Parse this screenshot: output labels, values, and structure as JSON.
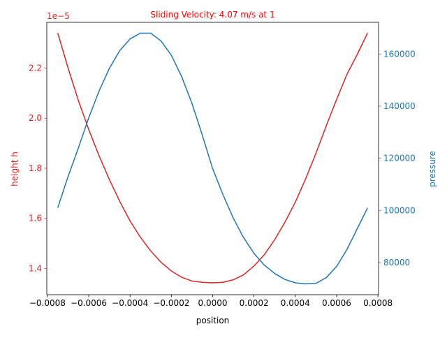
{
  "chart_data": {
    "type": "line",
    "title": "Sliding Velocity: 4.07 m/s at 1",
    "xlabel": "position",
    "xlim": [
      -0.000803,
      0.000803
    ],
    "x_ticks": [
      -0.0008,
      -0.0006,
      -0.0004,
      -0.0002,
      0.0,
      0.0002,
      0.0004,
      0.0006,
      0.0008
    ],
    "x_tick_labels": [
      "−0.0008",
      "−0.0006",
      "−0.0004",
      "−0.0002",
      "0.0000",
      "0.0002",
      "0.0004",
      "0.0006",
      "0.0008"
    ],
    "left_axis": {
      "label": "height h",
      "color": "#d62728",
      "offset_text": "1e−5",
      "ylim": [
        1.2955e-05,
        2.3825e-05
      ],
      "ticks": [
        1.4e-05,
        1.6e-05,
        1.8e-05,
        2e-05,
        2.2e-05
      ],
      "tick_labels": [
        "1.4",
        "1.6",
        "1.8",
        "2.0",
        "2.2"
      ]
    },
    "right_axis": {
      "label": "pressure",
      "color": "#1f77b4",
      "ylim": [
        67650,
        172150
      ],
      "ticks": [
        80000,
        100000,
        120000,
        140000,
        160000
      ],
      "tick_labels": [
        "80000",
        "100000",
        "120000",
        "140000",
        "160000"
      ]
    },
    "series": [
      {
        "axis": "left",
        "color": "#d62728",
        "x": [
          -0.00075,
          -0.0007,
          -0.00065,
          -0.0006,
          -0.00055,
          -0.0005,
          -0.00045,
          -0.0004,
          -0.00035,
          -0.0003,
          -0.00025,
          -0.0002,
          -0.00015,
          -0.0001,
          -5e-05,
          0.0,
          5e-05,
          0.0001,
          0.00015,
          0.0002,
          0.00025,
          0.0003,
          0.00035,
          0.0004,
          0.00045,
          0.0005,
          0.00055,
          0.0006,
          0.00065,
          0.0007,
          0.00075
        ],
        "values": [
          2.34e-05,
          2.2e-05,
          2.07e-05,
          1.955e-05,
          1.85e-05,
          1.755e-05,
          1.668e-05,
          1.59e-05,
          1.525e-05,
          1.47e-05,
          1.425e-05,
          1.39e-05,
          1.365e-05,
          1.35e-05,
          1.345e-05,
          1.343e-05,
          1.345e-05,
          1.355e-05,
          1.375e-05,
          1.41e-05,
          1.455e-05,
          1.515e-05,
          1.585e-05,
          1.665e-05,
          1.758e-05,
          1.86e-05,
          1.97e-05,
          2.075e-05,
          2.175e-05,
          2.255e-05,
          2.34e-05
        ]
      },
      {
        "axis": "right",
        "color": "#1f77b4",
        "x": [
          -0.00075,
          -0.0007,
          -0.00065,
          -0.0006,
          -0.00055,
          -0.0005,
          -0.00045,
          -0.0004,
          -0.00035,
          -0.0003,
          -0.00025,
          -0.0002,
          -0.00015,
          -0.0001,
          -5e-05,
          0.0,
          5e-05,
          0.0001,
          0.00015,
          0.0002,
          0.00025,
          0.0003,
          0.00035,
          0.0004,
          0.00045,
          0.0005,
          0.00055,
          0.0006,
          0.00065,
          0.0007,
          0.00075
        ],
        "values": [
          101000,
          113000,
          124000,
          135500,
          145800,
          154500,
          161300,
          165800,
          168000,
          168000,
          165000,
          159500,
          151300,
          141000,
          128800,
          116000,
          106000,
          97000,
          89500,
          83500,
          79000,
          75800,
          73500,
          72200,
          71800,
          72000,
          74200,
          78500,
          85000,
          93000,
          101000
        ]
      }
    ]
  }
}
